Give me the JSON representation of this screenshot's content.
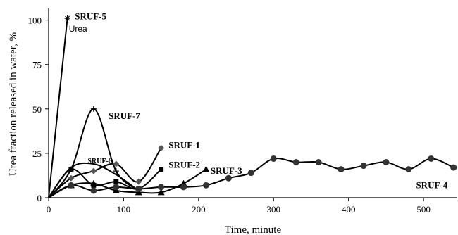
{
  "chart_data": {
    "type": "line",
    "title": "",
    "xlabel": "Time, minute",
    "ylabel": "Urea fraction released in water, %",
    "xlim": [
      0,
      545
    ],
    "ylim": [
      0,
      105
    ],
    "x_ticks": [
      0,
      100,
      200,
      300,
      400,
      500
    ],
    "y_ticks": [
      0,
      25,
      50,
      75,
      100
    ],
    "grid": false,
    "legend": "none",
    "annotations": [
      {
        "text": "Urea",
        "x": 27,
        "y": 95
      }
    ],
    "series": [
      {
        "name": "SRUF-5",
        "marker": "asterisk",
        "smooth": false,
        "label_font": "normal",
        "label_at": {
          "x": 35,
          "y": 102
        },
        "points": [
          [
            0,
            0
          ],
          [
            25,
            101
          ]
        ]
      },
      {
        "name": "SRUF-7",
        "marker": "plus",
        "smooth": true,
        "label_font": "normal",
        "label_at": {
          "x": 80,
          "y": 46
        },
        "points": [
          [
            0,
            0
          ],
          [
            30,
            16
          ],
          [
            60,
            50
          ],
          [
            90,
            15
          ],
          [
            120,
            4
          ]
        ]
      },
      {
        "name": "SRUF-6",
        "marker": "none",
        "smooth": true,
        "label_font": "small",
        "label_at": {
          "x": 52,
          "y": 21
        },
        "points": [
          [
            0,
            0
          ],
          [
            30,
            17
          ],
          [
            60,
            19
          ],
          [
            90,
            13
          ],
          [
            120,
            4
          ]
        ]
      },
      {
        "name": "SRUF-1",
        "marker": "diamond",
        "smooth": true,
        "label_font": "normal",
        "label_at": {
          "x": 160,
          "y": 29.5
        },
        "points": [
          [
            0,
            0
          ],
          [
            30,
            11
          ],
          [
            60,
            15
          ],
          [
            90,
            19
          ],
          [
            120,
            9
          ],
          [
            150,
            28
          ]
        ]
      },
      {
        "name": "SRUF-2",
        "marker": "square",
        "smooth": true,
        "label_font": "normal",
        "label_at": {
          "x": 160,
          "y": 18.5
        },
        "points": [
          [
            0,
            0
          ],
          [
            30,
            16
          ],
          [
            60,
            7
          ],
          [
            90,
            9
          ],
          [
            120,
            5
          ],
          [
            150,
            16
          ]
        ]
      },
      {
        "name": "SRUF-3",
        "marker": "triangle",
        "smooth": true,
        "label_font": "normal",
        "label_at": {
          "x": 216,
          "y": 15
        },
        "points": [
          [
            0,
            0
          ],
          [
            30,
            7
          ],
          [
            60,
            8
          ],
          [
            90,
            4
          ],
          [
            120,
            3
          ],
          [
            150,
            3
          ],
          [
            180,
            8
          ],
          [
            210,
            16
          ]
        ]
      },
      {
        "name": "SRUF-4",
        "marker": "circle",
        "smooth": true,
        "label_font": "normal",
        "label_at": {
          "x": 490,
          "y": 7
        },
        "points": [
          [
            0,
            0
          ],
          [
            30,
            7
          ],
          [
            60,
            4
          ],
          [
            90,
            6
          ],
          [
            120,
            5
          ],
          [
            150,
            6
          ],
          [
            180,
            6
          ],
          [
            210,
            7
          ],
          [
            240,
            11
          ],
          [
            270,
            14
          ],
          [
            300,
            22
          ],
          [
            330,
            20
          ],
          [
            360,
            20
          ],
          [
            390,
            16
          ],
          [
            420,
            18
          ],
          [
            450,
            20
          ],
          [
            480,
            16
          ],
          [
            510,
            22
          ],
          [
            540,
            17
          ]
        ]
      }
    ]
  }
}
